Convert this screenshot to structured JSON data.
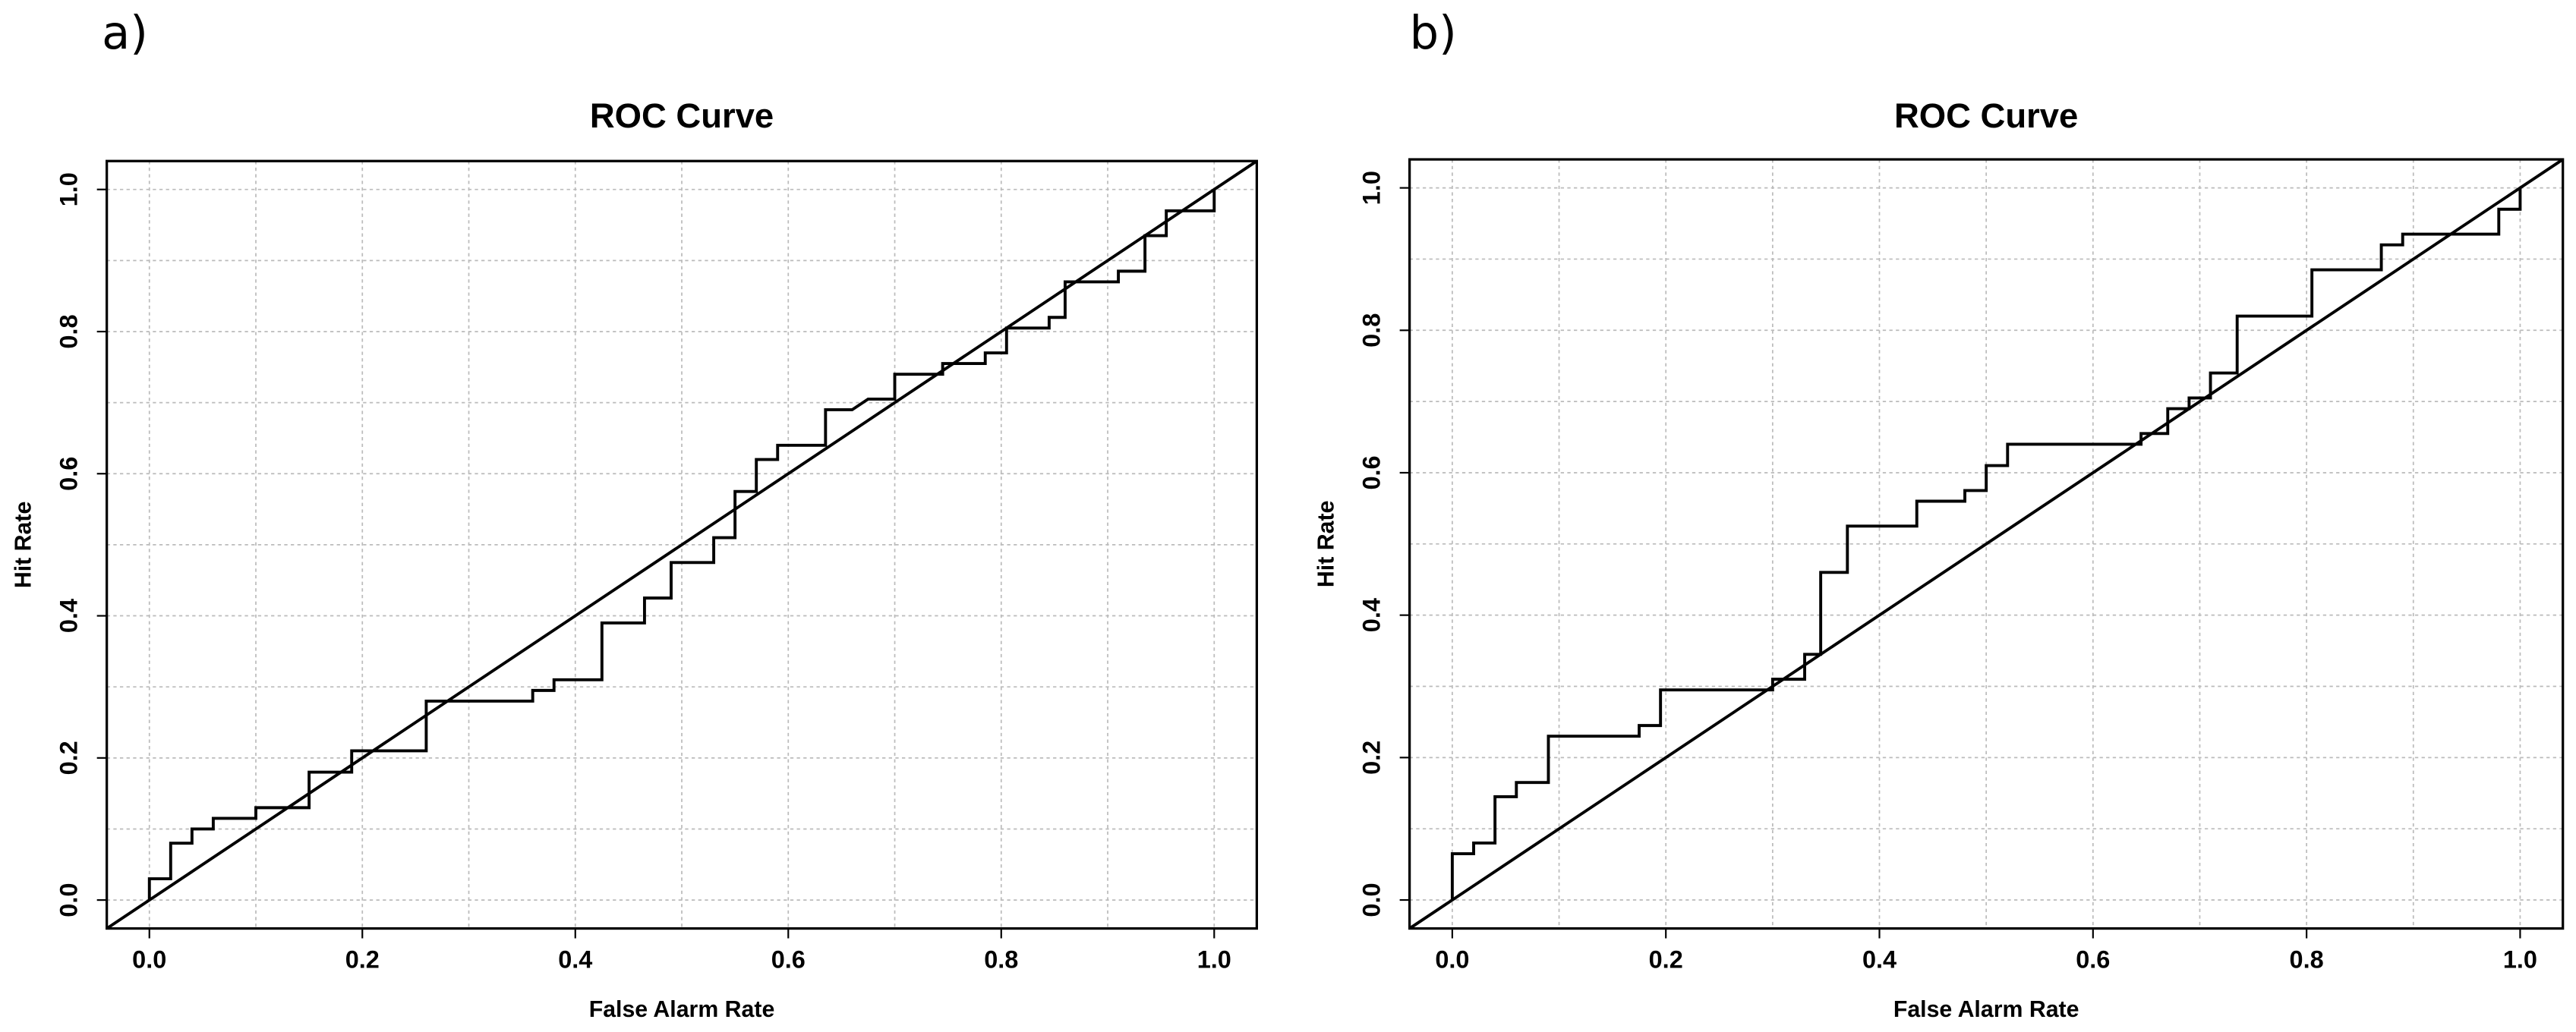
{
  "chart_data": [
    {
      "type": "line",
      "panel_label": "a)",
      "title": "ROC Curve",
      "xlabel": "False Alarm Rate",
      "ylabel": "Hit Rate",
      "xlim": [
        -0.04,
        1.04
      ],
      "ylim": [
        -0.04,
        1.04
      ],
      "xticks": [
        {
          "value": 0,
          "label": "0.0"
        },
        0.2,
        0.4,
        0.6,
        0.8,
        {
          "value": 1,
          "label": "1.0"
        }
      ],
      "yticks": [
        {
          "value": 0,
          "label": "0.0"
        },
        0.2,
        0.4,
        0.6,
        0.8,
        {
          "value": 1,
          "label": "1.0"
        }
      ],
      "xgrid": [
        0,
        0.1,
        0.2,
        0.3,
        0.4,
        0.5,
        0.6,
        0.7,
        0.8,
        0.9,
        1
      ],
      "ygrid": [
        0,
        0.1,
        0.2,
        0.3,
        0.4,
        0.5,
        0.6,
        0.7,
        0.8,
        0.9,
        1
      ],
      "grid": true,
      "series": [
        {
          "color": "#000000",
          "x": [
            0,
            0,
            0.02,
            0.02,
            0.04,
            0.04,
            0.06,
            0.06,
            0.1,
            0.1,
            0.15,
            0.15,
            0.19,
            0.19,
            0.26,
            0.26,
            0.36,
            0.36,
            0.38,
            0.38,
            0.425,
            0.425,
            0.465,
            0.465,
            0.49,
            0.49,
            0.53,
            0.53,
            0.55,
            0.55,
            0.57,
            0.57,
            0.59,
            0.59,
            0.635,
            0.635,
            0.66,
            0.675,
            0.7,
            0.7,
            0.745,
            0.745,
            0.785,
            0.785,
            0.805,
            0.805,
            0.845,
            0.845,
            0.86,
            0.86,
            0.91,
            0.91,
            0.935,
            0.935,
            0.955,
            0.955,
            1,
            1
          ],
          "values": [
            0,
            0.03,
            0.03,
            0.08,
            0.08,
            0.1,
            0.1,
            0.115,
            0.115,
            0.13,
            0.13,
            0.18,
            0.18,
            0.21,
            0.21,
            0.28,
            0.28,
            0.295,
            0.295,
            0.31,
            0.31,
            0.39,
            0.39,
            0.425,
            0.425,
            0.475,
            0.475,
            0.51,
            0.51,
            0.575,
            0.575,
            0.62,
            0.62,
            0.64,
            0.64,
            0.69,
            0.69,
            0.705,
            0.705,
            0.74,
            0.74,
            0.755,
            0.755,
            0.77,
            0.77,
            0.805,
            0.805,
            0.82,
            0.82,
            0.87,
            0.87,
            0.885,
            0.885,
            0.935,
            0.935,
            0.97,
            0.97,
            1
          ]
        },
        {
          "color": "#000000",
          "x": [
            -0.04,
            1.04
          ],
          "values": [
            -0.04,
            1.04
          ]
        }
      ]
    },
    {
      "type": "line",
      "panel_label": "b)",
      "title": "ROC Curve",
      "xlabel": "False Alarm Rate",
      "ylabel": "Hit Rate",
      "xlim": [
        -0.04,
        1.04
      ],
      "ylim": [
        -0.04,
        1.04
      ],
      "xticks": [
        {
          "value": 0,
          "label": "0.0"
        },
        0.2,
        0.4,
        0.6,
        0.8,
        {
          "value": 1,
          "label": "1.0"
        }
      ],
      "yticks": [
        {
          "value": 0,
          "label": "0.0"
        },
        0.2,
        0.4,
        0.6,
        0.8,
        {
          "value": 1,
          "label": "1.0"
        }
      ],
      "xgrid": [
        0,
        0.1,
        0.2,
        0.3,
        0.4,
        0.5,
        0.6,
        0.7,
        0.8,
        0.9,
        1
      ],
      "ygrid": [
        0,
        0.1,
        0.2,
        0.3,
        0.4,
        0.5,
        0.6,
        0.7,
        0.8,
        0.9,
        1
      ],
      "grid": true,
      "series": [
        {
          "color": "#000000",
          "x": [
            0,
            0,
            0.02,
            0.02,
            0.04,
            0.04,
            0.06,
            0.06,
            0.09,
            0.09,
            0.175,
            0.175,
            0.195,
            0.195,
            0.3,
            0.3,
            0.33,
            0.33,
            0.345,
            0.345,
            0.37,
            0.37,
            0.435,
            0.435,
            0.48,
            0.48,
            0.5,
            0.5,
            0.52,
            0.52,
            0.645,
            0.645,
            0.67,
            0.67,
            0.69,
            0.69,
            0.71,
            0.71,
            0.735,
            0.735,
            0.805,
            0.805,
            0.87,
            0.87,
            0.89,
            0.89,
            0.98,
            0.98,
            1,
            1
          ],
          "values": [
            0,
            0.065,
            0.065,
            0.08,
            0.08,
            0.145,
            0.145,
            0.165,
            0.165,
            0.23,
            0.23,
            0.245,
            0.245,
            0.295,
            0.295,
            0.31,
            0.31,
            0.345,
            0.345,
            0.46,
            0.46,
            0.525,
            0.525,
            0.56,
            0.56,
            0.575,
            0.575,
            0.61,
            0.61,
            0.64,
            0.64,
            0.655,
            0.655,
            0.69,
            0.69,
            0.705,
            0.705,
            0.74,
            0.74,
            0.82,
            0.82,
            0.885,
            0.885,
            0.92,
            0.92,
            0.935,
            0.935,
            0.97,
            0.97,
            1
          ]
        },
        {
          "color": "#000000",
          "x": [
            -0.04,
            1.04
          ],
          "values": [
            -0.04,
            1.04
          ]
        }
      ]
    }
  ]
}
